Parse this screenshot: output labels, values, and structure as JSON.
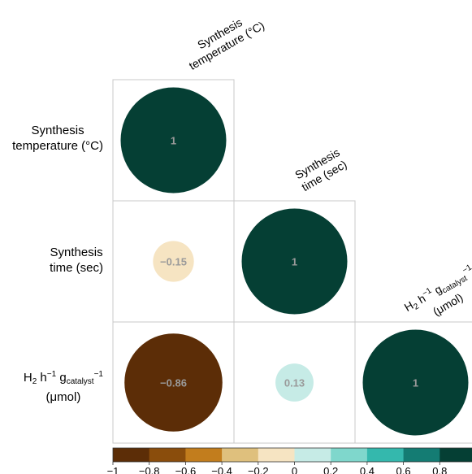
{
  "chart_data": {
    "type": "heatmap",
    "variables": [
      "Synthesis temperature (°C)",
      "Synthesis time (sec)",
      "H2 h−1 gcatalyst−1 (μmol)"
    ],
    "matrix": [
      [
        1,
        null,
        null
      ],
      [
        -0.15,
        1,
        null
      ],
      [
        -0.86,
        0.13,
        1
      ]
    ],
    "cell_labels": [
      [
        "1",
        "",
        ""
      ],
      [
        "−0.15",
        "1",
        ""
      ],
      [
        "−0.86",
        "0.13",
        "1"
      ]
    ],
    "colorbar": {
      "range": [
        -1,
        1
      ],
      "ticks": [
        "−1",
        "−0.8",
        "−0.6",
        "−0.4",
        "−0.2",
        "0",
        "0.2",
        "0.4",
        "0.6",
        "0.8",
        "1"
      ],
      "colors": [
        "#5c2d07",
        "#8a4d0c",
        "#c27d1d",
        "#dfc07d",
        "#f6e4c2",
        "#c6ebe6",
        "#7fd7cc",
        "#34b8ad",
        "#147c73",
        "#053f34"
      ]
    },
    "grid": true
  },
  "labels": {
    "row1_line1": "Synthesis",
    "row1_line2": "temperature (°C)",
    "row2_line1": "Synthesis",
    "row2_line2": "time (sec)",
    "row3_main": "H",
    "row3_sub2": "2",
    "row3_h": " h",
    "row3_sup1": "−1",
    "row3_g": " g",
    "row3_sub_cat": "catalyst",
    "row3_sup2": "−1",
    "row3_unit": "(μmol)",
    "col1_line1": "Synthesis",
    "col1_line2": "temperature (°C)",
    "col2_line1": "Synthesis",
    "col2_line2": "time (sec)",
    "col3_unit": "(μmol)"
  }
}
